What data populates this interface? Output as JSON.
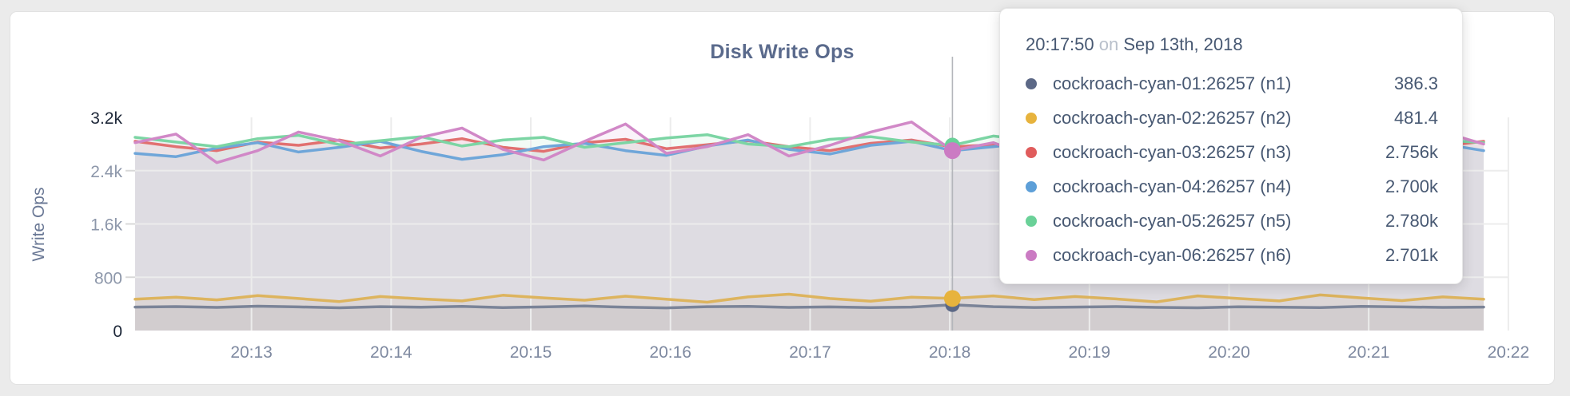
{
  "tooltip": {
    "time": "20:17:50",
    "connector": "on",
    "date": "Sep 13th, 2018"
  },
  "theme": {
    "title_color": "#5a6a8c",
    "tooltip_text": "#475872",
    "tooltip_muted": "#b9c0cb",
    "grid_color": "#ececec",
    "tick_stub_color": "#d8d8d8",
    "hover_line_color": "#b4b6bb",
    "y_tick_dark": "#1e2839",
    "y_tick_gray": "#8d97aa",
    "x_tick_color": "#7e89a0",
    "axis_label_color": "#6a7895",
    "card_background": "#ffffff",
    "page_background": "#ebebeb"
  },
  "chart_data": {
    "type": "line",
    "title": "Disk Write Ops",
    "xlabel": "",
    "ylabel": "Write Ops",
    "ylim": [
      0,
      3200
    ],
    "grid": true,
    "legend_position": "tooltip-overlay",
    "y_ticks": [
      {
        "value": 0,
        "label": "0",
        "emph": true
      },
      {
        "value": 800,
        "label": "800",
        "emph": false
      },
      {
        "value": 1600,
        "label": "1.6k",
        "emph": false
      },
      {
        "value": 2400,
        "label": "2.4k",
        "emph": false
      },
      {
        "value": 3200,
        "label": "3.2k",
        "emph": true
      }
    ],
    "x_ticks": [
      "20:13",
      "20:14",
      "20:15",
      "20:16",
      "20:17",
      "20:18",
      "20:19",
      "20:20",
      "20:21",
      "20:22"
    ],
    "hover": {
      "index": 20,
      "time": "20:17:50",
      "date": "Sep 13th, 2018"
    },
    "series": [
      {
        "name": "cockroach-cyan-01:26257 (n1)",
        "color": "#5c6886",
        "line_color": "#7b8498",
        "hover_label": "386.3",
        "values": [
          352,
          360,
          348,
          365,
          355,
          342,
          358,
          350,
          362,
          345,
          355,
          368,
          350,
          340,
          358,
          362,
          348,
          355,
          344,
          352,
          386.3,
          358,
          346,
          352,
          360,
          348,
          342,
          356,
          350,
          345,
          362,
          355,
          348,
          352
        ]
      },
      {
        "name": "cockroach-cyan-02:26257 (n2)",
        "color": "#e7b33d",
        "line_color": "#ddb45e",
        "hover_label": "481.4",
        "values": [
          470,
          500,
          460,
          525,
          480,
          435,
          510,
          475,
          445,
          530,
          490,
          455,
          515,
          470,
          425,
          505,
          545,
          480,
          440,
          500,
          481.4,
          520,
          465,
          510,
          475,
          430,
          520,
          480,
          445,
          535,
          490,
          450,
          505,
          470
        ]
      },
      {
        "name": "cockroach-cyan-03:26257 (n3)",
        "color": "#e05c5c",
        "line_color": "#e17070",
        "hover_label": "2.756k",
        "values": [
          2840,
          2760,
          2700,
          2830,
          2780,
          2860,
          2740,
          2800,
          2880,
          2750,
          2690,
          2820,
          2870,
          2730,
          2790,
          2850,
          2760,
          2700,
          2810,
          2860,
          2756,
          2790,
          2720,
          2850,
          2780,
          2730,
          2810,
          2760,
          2880,
          2800,
          2740,
          2820,
          2770,
          2840
        ]
      },
      {
        "name": "cockroach-cyan-04:26257 (n4)",
        "color": "#5d9fd8",
        "line_color": "#6fa6d9",
        "hover_label": "2.700k",
        "values": [
          2660,
          2610,
          2740,
          2820,
          2680,
          2750,
          2840,
          2690,
          2570,
          2640,
          2760,
          2810,
          2700,
          2630,
          2770,
          2860,
          2720,
          2650,
          2780,
          2840,
          2700,
          2760,
          2830,
          2660,
          2710,
          2780,
          2620,
          2700,
          2850,
          2730,
          2670,
          2740,
          2800,
          2700
        ]
      },
      {
        "name": "cockroach-cyan-05:26257 (n5)",
        "color": "#6ad198",
        "line_color": "#7cd5a4",
        "hover_label": "2.780k",
        "values": [
          2900,
          2830,
          2760,
          2880,
          2930,
          2790,
          2850,
          2910,
          2770,
          2860,
          2900,
          2750,
          2820,
          2890,
          2940,
          2800,
          2760,
          2870,
          2910,
          2830,
          2780,
          2920,
          2850,
          2770,
          2890,
          2930,
          2800,
          2850,
          2780,
          2900,
          2840,
          2790,
          2860,
          2820
        ]
      },
      {
        "name": "cockroach-cyan-06:26257 (n6)",
        "color": "#cb7bc3",
        "line_color": "#d188c7",
        "hover_label": "2.701k",
        "values": [
          2820,
          2950,
          2520,
          2700,
          2980,
          2850,
          2620,
          2900,
          3040,
          2720,
          2560,
          2840,
          3100,
          2660,
          2760,
          2940,
          2620,
          2780,
          2980,
          3130,
          2701,
          2820,
          2600,
          2920,
          2760,
          2520,
          2950,
          2820,
          2640,
          3040,
          2860,
          2700,
          2980,
          2800
        ]
      }
    ]
  }
}
